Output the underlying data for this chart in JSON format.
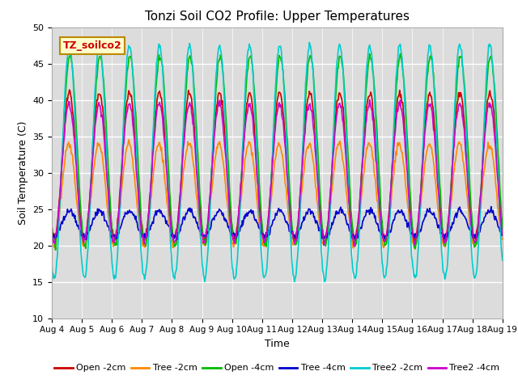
{
  "title": "Tonzi Soil CO2 Profile: Upper Temperatures",
  "xlabel": "Time",
  "ylabel": "Soil Temperature (C)",
  "ylim": [
    10,
    50
  ],
  "xlim": [
    0,
    15
  ],
  "bg_color": "#dcdcdc",
  "legend_label": "TZ_soilco2",
  "series_order": [
    "Open -2cm",
    "Tree -2cm",
    "Open -4cm",
    "Tree -4cm",
    "Tree2 -2cm",
    "Tree2 -4cm"
  ],
  "series": {
    "Open -2cm": {
      "color": "#cc0000",
      "lw": 1.2
    },
    "Tree -2cm": {
      "color": "#ff8800",
      "lw": 1.2
    },
    "Open -4cm": {
      "color": "#00bb00",
      "lw": 1.2
    },
    "Tree -4cm": {
      "color": "#0000cc",
      "lw": 1.2
    },
    "Tree2 -2cm": {
      "color": "#00cccc",
      "lw": 1.2
    },
    "Tree2 -4cm": {
      "color": "#cc00cc",
      "lw": 1.2
    }
  },
  "xtick_labels": [
    "Aug 4",
    "Aug 5",
    "Aug 6",
    "Aug 7",
    "Aug 8",
    "Aug 9",
    "Aug 10",
    "Aug 11",
    "Aug 12",
    "Aug 13",
    "Aug 14",
    "Aug 15",
    "Aug 16",
    "Aug 17",
    "Aug 18",
    "Aug 19"
  ],
  "ytick_labels": [
    10,
    15,
    20,
    25,
    30,
    35,
    40,
    45,
    50
  ],
  "params": {
    "Open -2cm": {
      "mean": 31.0,
      "amp": 10.0,
      "phase_hr": 14.0,
      "min_val": 21.0,
      "max_val": 41.0
    },
    "Tree -2cm": {
      "mean": 27.0,
      "amp": 7.0,
      "phase_hr": 13.5,
      "min_val": 20.0,
      "max_val": 34.0
    },
    "Open -4cm": {
      "mean": 33.0,
      "amp": 13.0,
      "phase_hr": 14.5,
      "min_val": 20.0,
      "max_val": 46.0
    },
    "Tree -4cm": {
      "mean": 23.0,
      "amp": 1.8,
      "phase_hr": 14.0,
      "min_val": 21.0,
      "max_val": 26.0
    },
    "Tree2 -2cm": {
      "mean": 31.5,
      "amp": 16.0,
      "phase_hr": 14.0,
      "min_val": 15.5,
      "max_val": 47.5
    },
    "Tree2 -4cm": {
      "mean": 30.0,
      "amp": 9.5,
      "phase_hr": 13.8,
      "min_val": 20.0,
      "max_val": 39.5
    }
  }
}
